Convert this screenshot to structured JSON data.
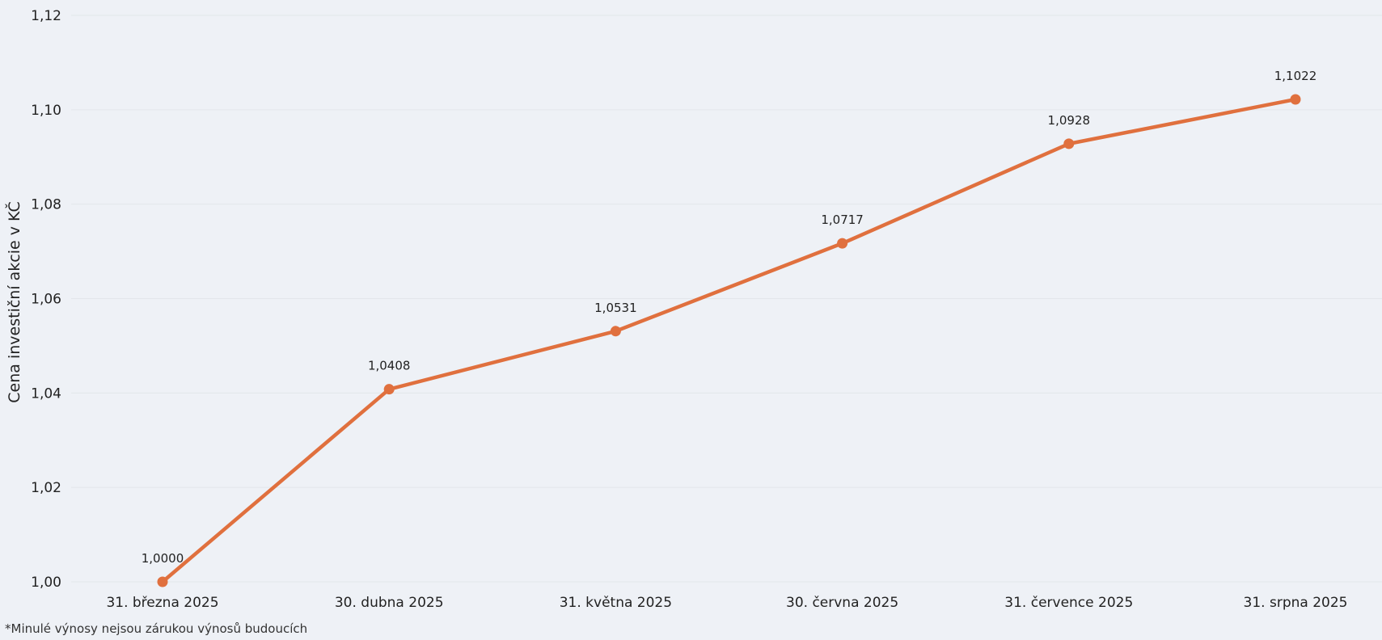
{
  "chart_data": {
    "type": "line",
    "ylabel": "Cena investiční akcie v KČ",
    "xlabel": "",
    "categories": [
      "31. března 2025",
      "30. dubna 2025",
      "31. května 2025",
      "30. června 2025",
      "31. července 2025",
      "31. srpna 2025"
    ],
    "series": [
      {
        "values": [
          1.0,
          1.0408,
          1.0531,
          1.0717,
          1.0928,
          1.1022
        ],
        "labels": [
          "1,0000",
          "1,0408",
          "1,0531",
          "1,0717",
          "1,0928",
          "1,1022"
        ],
        "color": "#e0703e"
      }
    ],
    "ylim": [
      1.0,
      1.12
    ],
    "yticks": [
      1.0,
      1.02,
      1.04,
      1.06,
      1.08,
      1.1,
      1.12
    ],
    "ytick_labels": [
      "1,00",
      "1,02",
      "1,04",
      "1,06",
      "1,08",
      "1,10",
      "1,12"
    ],
    "grid": true,
    "gridColor": "#e3e6eb",
    "legend": "none"
  },
  "footnote": "*Minulé výnosy nejsou zárukou výnosů budoucích"
}
